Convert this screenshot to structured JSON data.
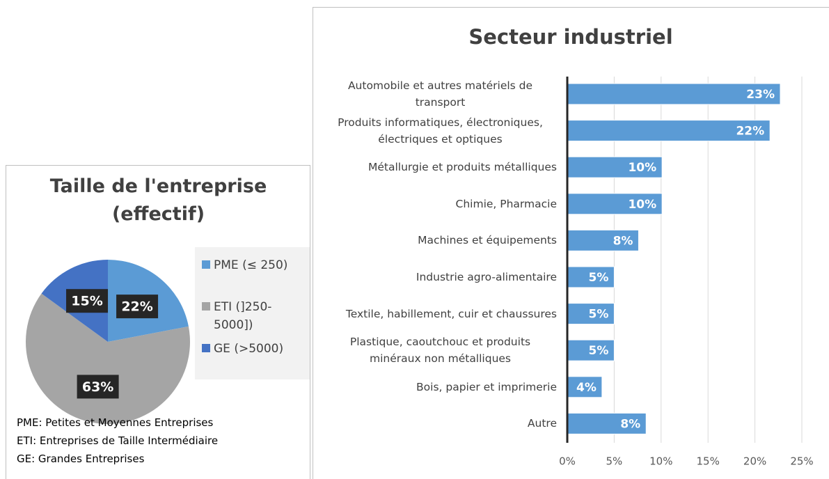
{
  "chart_data": [
    {
      "type": "pie",
      "title": "Taille de l'entreprise (effectif)",
      "categories": [
        "PME (≤ 250)",
        "ETI (]250-5000])",
        "GE (>5000)"
      ],
      "values": [
        22,
        63,
        15
      ],
      "value_labels": [
        "22%",
        "63%",
        "15%"
      ],
      "colors": [
        "#5b9bd5",
        "#a5a5a5",
        "#4472c4"
      ],
      "legend": "right",
      "notes": [
        "PME: Petites et Moyennes Entreprises",
        "ETI: Entreprises de Taille Intermédiaire",
        "GE: Grandes Entreprises"
      ]
    },
    {
      "type": "hbar",
      "title": "Secteur industriel",
      "categories": [
        "Automobile et autres matériels de transport",
        "Produits informatiques, électroniques, électriques et optiques",
        "Métallurgie et produits métalliques",
        "Chimie, Pharmacie",
        "Machines et équipements",
        "Industrie agro-alimentaire",
        "Textile, habillement, cuir et chaussures",
        "Plastique, caoutchouc et produits minéraux non métalliques",
        "Bois, papier et imprimerie",
        "Autre"
      ],
      "values": [
        22.7,
        21.6,
        10.1,
        10.1,
        7.6,
        5.0,
        5.0,
        5.0,
        3.7,
        8.4
      ],
      "value_labels": [
        "23%",
        "22%",
        "10%",
        "10%",
        "8%",
        "5%",
        "5%",
        "5%",
        "4%",
        "8%"
      ],
      "color": "#5b9bd5",
      "xlim": [
        0,
        25
      ],
      "xticks": [
        {
          "value": 0,
          "label": "0%"
        },
        {
          "value": 5,
          "label": "5%"
        },
        {
          "value": 10,
          "label": "10%"
        },
        {
          "value": 15,
          "label": "15%"
        },
        {
          "value": 20,
          "label": "20%"
        },
        {
          "value": 25,
          "label": "25%"
        }
      ],
      "grid": true
    }
  ]
}
